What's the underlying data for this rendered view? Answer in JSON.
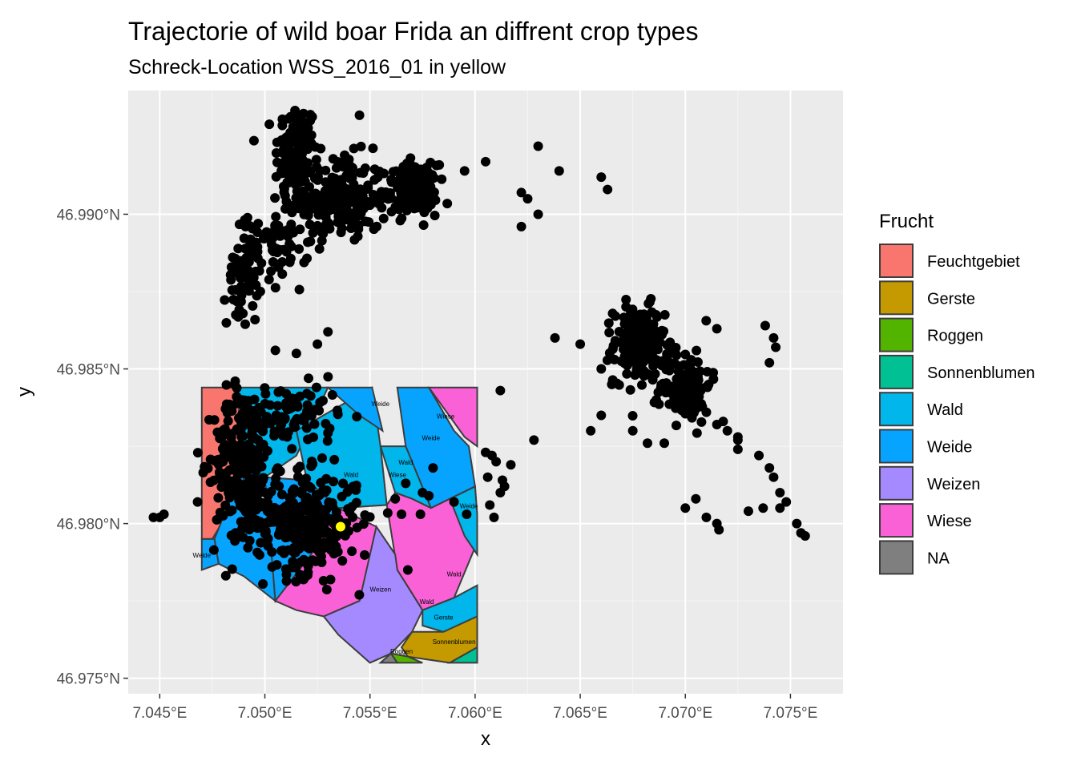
{
  "chart_data": {
    "type": "scatter",
    "title": "Trajectorie of wild boar Frida an diffrent crop types",
    "subtitle": "Schreck-Location WSS_2016_01 in yellow",
    "xlabel": "x",
    "ylabel": "y",
    "xlim": [
      7.0435,
      7.0775
    ],
    "ylim": [
      46.9745,
      46.994
    ],
    "x_ticks": [
      {
        "value": 7.045,
        "label": "7.045°E"
      },
      {
        "value": 7.05,
        "label": "7.050°E"
      },
      {
        "value": 7.055,
        "label": "7.055°E"
      },
      {
        "value": 7.06,
        "label": "7.060°E"
      },
      {
        "value": 7.065,
        "label": "7.065°E"
      },
      {
        "value": 7.07,
        "label": "7.070°E"
      },
      {
        "value": 7.075,
        "label": "7.075°E"
      }
    ],
    "y_ticks": [
      {
        "value": 46.975,
        "label": "46.975°N"
      },
      {
        "value": 46.98,
        "label": "46.980°N"
      },
      {
        "value": 46.985,
        "label": "46.985°N"
      },
      {
        "value": 46.99,
        "label": "46.990°N"
      }
    ],
    "grid": true,
    "legend": {
      "title": "Frucht",
      "placement": "right",
      "entries": [
        {
          "label": "Feuchtgebiet",
          "color": "#F8766D"
        },
        {
          "label": "Gerste",
          "color": "#C49A00"
        },
        {
          "label": "Roggen",
          "color": "#53B400"
        },
        {
          "label": "Sonnenblumen",
          "color": "#00C094"
        },
        {
          "label": "Wald",
          "color": "#00B6EB"
        },
        {
          "label": "Weide",
          "color": "#06A4FF"
        },
        {
          "label": "Weizen",
          "color": "#A58AFF"
        },
        {
          "label": "Wiese",
          "color": "#FB61D7"
        },
        {
          "label": "NA",
          "color": "#7F7F7F"
        }
      ]
    },
    "fields": [
      {
        "crop": "Feuchtgebiet",
        "coords": [
          [
            7.047,
            46.9844
          ],
          [
            7.0487,
            46.9844
          ],
          [
            7.049,
            46.9812
          ],
          [
            7.0475,
            46.9795
          ],
          [
            7.047,
            46.9795
          ]
        ]
      },
      {
        "crop": "Weide",
        "coords": [
          [
            7.0476,
            46.9795
          ],
          [
            7.0492,
            46.9822
          ],
          [
            7.0502,
            46.98
          ],
          [
            7.0505,
            46.9775
          ],
          [
            7.049,
            46.9783
          ],
          [
            7.0478,
            46.9787
          ]
        ]
      },
      {
        "crop": "Weide",
        "coords": [
          [
            7.047,
            46.9795
          ],
          [
            7.0476,
            46.9795
          ],
          [
            7.0478,
            46.9787
          ],
          [
            7.047,
            46.9785
          ]
        ]
      },
      {
        "crop": "Wald",
        "coords": [
          [
            7.0487,
            46.9844
          ],
          [
            7.053,
            46.9844
          ],
          [
            7.0515,
            46.9822
          ],
          [
            7.05,
            46.9815
          ],
          [
            7.049,
            46.9812
          ]
        ]
      },
      {
        "crop": "Wald",
        "coords": [
          [
            7.0515,
            46.983
          ],
          [
            7.0551,
            46.9844
          ],
          [
            7.0555,
            46.9825
          ],
          [
            7.0558,
            46.9806
          ],
          [
            7.0535,
            46.9805
          ],
          [
            7.052,
            46.9814
          ]
        ]
      },
      {
        "crop": "Weide",
        "coords": [
          [
            7.05,
            46.9815
          ],
          [
            7.052,
            46.9814
          ],
          [
            7.0535,
            46.9805
          ],
          [
            7.0522,
            46.979
          ],
          [
            7.0505,
            46.9775
          ],
          [
            7.0502,
            46.98
          ]
        ]
      },
      {
        "crop": "Wiese",
        "coords": [
          [
            7.0505,
            46.9775
          ],
          [
            7.0522,
            46.979
          ],
          [
            7.0535,
            46.9805
          ],
          [
            7.0553,
            46.9799
          ],
          [
            7.0562,
            46.979
          ],
          [
            7.0545,
            46.9775
          ],
          [
            7.0528,
            46.977
          ],
          [
            7.0515,
            46.9772
          ]
        ]
      },
      {
        "crop": "Weide",
        "coords": [
          [
            7.053,
            46.9844
          ],
          [
            7.0551,
            46.9844
          ],
          [
            7.0556,
            46.983
          ],
          [
            7.0545,
            46.9835
          ]
        ]
      },
      {
        "crop": "Weide",
        "coords": [
          [
            7.0563,
            46.9844
          ],
          [
            7.0578,
            46.9844
          ],
          [
            7.059,
            46.983
          ],
          [
            7.0597,
            46.9825
          ],
          [
            7.06,
            46.9812
          ],
          [
            7.0588,
            46.9808
          ],
          [
            7.0579,
            46.9805
          ],
          [
            7.0567,
            46.9825
          ]
        ]
      },
      {
        "crop": "Wiese",
        "coords": [
          [
            7.0578,
            46.9844
          ],
          [
            7.0601,
            46.9844
          ],
          [
            7.0601,
            46.9825
          ],
          [
            7.0595,
            46.9828
          ]
        ]
      },
      {
        "crop": "Wald",
        "coords": [
          [
            7.0555,
            46.9825
          ],
          [
            7.0567,
            46.9825
          ],
          [
            7.0579,
            46.9805
          ],
          [
            7.057,
            46.9808
          ],
          [
            7.0562,
            46.981
          ]
        ]
      },
      {
        "crop": "Wiese",
        "coords": [
          [
            7.0558,
            46.9806
          ],
          [
            7.0562,
            46.981
          ],
          [
            7.057,
            46.9808
          ],
          [
            7.0579,
            46.9805
          ],
          [
            7.0588,
            46.9808
          ],
          [
            7.0601,
            46.9794
          ],
          [
            7.059,
            46.9776
          ],
          [
            7.0575,
            46.9772
          ],
          [
            7.0563,
            46.9785
          ]
        ]
      },
      {
        "crop": "Wald",
        "coords": [
          [
            7.0588,
            46.9808
          ],
          [
            7.06,
            46.9812
          ],
          [
            7.0601,
            46.9803
          ],
          [
            7.0601,
            46.979
          ],
          [
            7.0595,
            46.9796
          ]
        ]
      },
      {
        "crop": "Weizen",
        "coords": [
          [
            7.0553,
            46.9799
          ],
          [
            7.0562,
            46.979
          ],
          [
            7.0563,
            46.9785
          ],
          [
            7.0575,
            46.9772
          ],
          [
            7.057,
            46.9765
          ],
          [
            7.056,
            46.9758
          ],
          [
            7.055,
            46.9755
          ],
          [
            7.0535,
            46.9764
          ],
          [
            7.0528,
            46.977
          ],
          [
            7.0545,
            46.9775
          ]
        ]
      },
      {
        "crop": "Wald",
        "coords": [
          [
            7.0575,
            46.9772
          ],
          [
            7.059,
            46.9776
          ],
          [
            7.0601,
            46.978
          ],
          [
            7.0601,
            46.977
          ],
          [
            7.0585,
            46.9765
          ],
          [
            7.0575,
            46.9767
          ]
        ]
      },
      {
        "crop": "Gerste",
        "coords": [
          [
            7.057,
            46.9765
          ],
          [
            7.0585,
            46.9765
          ],
          [
            7.0601,
            46.977
          ],
          [
            7.0601,
            46.976
          ],
          [
            7.0588,
            46.9755
          ],
          [
            7.0568,
            46.9757
          ],
          [
            7.0565,
            46.976
          ]
        ]
      },
      {
        "crop": "Sonnenblumen",
        "coords": [
          [
            7.0588,
            46.9755
          ],
          [
            7.0601,
            46.976
          ],
          [
            7.0601,
            46.9755
          ],
          [
            7.059,
            46.9755
          ]
        ]
      },
      {
        "crop": "Roggen",
        "coords": [
          [
            7.056,
            46.9758
          ],
          [
            7.0568,
            46.9757
          ],
          [
            7.0575,
            46.9755
          ],
          [
            7.0563,
            46.9755
          ]
        ]
      },
      {
        "crop": "NA",
        "coords": [
          [
            7.0555,
            46.9755
          ],
          [
            7.056,
            46.9758
          ],
          [
            7.0563,
            46.9755
          ]
        ]
      }
    ],
    "field_labels": [
      {
        "text": "Weide",
        "x": 7.0555,
        "y": 46.9838
      },
      {
        "text": "Wiese",
        "x": 7.0586,
        "y": 46.9834
      },
      {
        "text": "Weide",
        "x": 7.0579,
        "y": 46.9827
      },
      {
        "text": "Wald",
        "x": 7.0567,
        "y": 46.9819
      },
      {
        "text": "Wiese",
        "x": 7.0563,
        "y": 46.9815
      },
      {
        "text": "Wald",
        "x": 7.0541,
        "y": 46.9815
      },
      {
        "text": "Weide",
        "x": 7.047,
        "y": 46.9789
      },
      {
        "text": "Weide",
        "x": 7.0597,
        "y": 46.9805
      },
      {
        "text": "Wald",
        "x": 7.059,
        "y": 46.9783
      },
      {
        "text": "Weizen",
        "x": 7.0555,
        "y": 46.9778
      },
      {
        "text": "Wald",
        "x": 7.0577,
        "y": 46.9774
      },
      {
        "text": "Gerste",
        "x": 7.0585,
        "y": 46.9769
      },
      {
        "text": "Sonnenblumen",
        "x": 7.059,
        "y": 46.9761
      },
      {
        "text": "Roggen",
        "x": 7.0565,
        "y": 46.9758
      }
    ],
    "series": [
      {
        "color": "#000000",
        "clusters": [
          {
            "cx": 7.0515,
            "cy": 46.992,
            "sx": 0.0005,
            "sy": 0.0008,
            "n": 120
          },
          {
            "cx": 7.0535,
            "cy": 46.9905,
            "sx": 0.0012,
            "sy": 0.0007,
            "n": 220
          },
          {
            "cx": 7.057,
            "cy": 46.9908,
            "sx": 0.0006,
            "sy": 0.0004,
            "n": 150
          },
          {
            "cx": 7.0505,
            "cy": 46.989,
            "sx": 0.0008,
            "sy": 0.0005,
            "n": 60
          },
          {
            "cx": 7.049,
            "cy": 46.988,
            "sx": 0.0004,
            "sy": 0.0008,
            "n": 60
          },
          {
            "cx": 7.0678,
            "cy": 46.9858,
            "sx": 0.0006,
            "sy": 0.0006,
            "n": 200
          },
          {
            "cx": 7.07,
            "cy": 46.9845,
            "sx": 0.0006,
            "sy": 0.0006,
            "n": 120
          },
          {
            "cx": 7.049,
            "cy": 46.982,
            "sx": 0.0007,
            "sy": 0.0012,
            "n": 280
          },
          {
            "cx": 7.052,
            "cy": 46.98,
            "sx": 0.0012,
            "sy": 0.0008,
            "n": 300
          },
          {
            "cx": 7.0515,
            "cy": 46.9835,
            "sx": 0.001,
            "sy": 0.0005,
            "n": 80
          }
        ],
        "points": [
          [
            7.0447,
            46.9802
          ],
          [
            7.045,
            46.9802
          ],
          [
            7.0452,
            46.9803
          ],
          [
            7.0468,
            46.9807
          ],
          [
            7.053,
            46.9862
          ],
          [
            7.0525,
            46.9858
          ],
          [
            7.0515,
            46.9855
          ],
          [
            7.0505,
            46.9856
          ],
          [
            7.0545,
            46.9932
          ],
          [
            7.0595,
            46.9914
          ],
          [
            7.0605,
            46.9917
          ],
          [
            7.063,
            46.9922
          ],
          [
            7.0625,
            46.9905
          ],
          [
            7.064,
            46.9914
          ],
          [
            7.0622,
            46.9907
          ],
          [
            7.066,
            46.9912
          ],
          [
            7.0663,
            46.9908
          ],
          [
            7.0622,
            46.9896
          ],
          [
            7.063,
            46.99
          ],
          [
            7.0638,
            46.986
          ],
          [
            7.065,
            46.9858
          ],
          [
            7.066,
            46.985
          ],
          [
            7.0665,
            46.9845
          ],
          [
            7.066,
            46.9835
          ],
          [
            7.0655,
            46.983
          ],
          [
            7.0675,
            46.983
          ],
          [
            7.069,
            46.9826
          ],
          [
            7.0682,
            46.9826
          ],
          [
            7.0715,
            46.9863
          ],
          [
            7.0738,
            46.9864
          ],
          [
            7.0742,
            46.986
          ],
          [
            7.0743,
            46.9857
          ],
          [
            7.074,
            46.9852
          ],
          [
            7.071,
            46.9836
          ],
          [
            7.0715,
            46.9832
          ],
          [
            7.0725,
            46.9827
          ],
          [
            7.0725,
            46.9824
          ],
          [
            7.0735,
            46.9822
          ],
          [
            7.074,
            46.9818
          ],
          [
            7.0742,
            46.9815
          ],
          [
            7.0745,
            46.981
          ],
          [
            7.0748,
            46.9807
          ],
          [
            7.0737,
            46.9805
          ],
          [
            7.073,
            46.9804
          ],
          [
            7.0745,
            46.9805
          ],
          [
            7.0753,
            46.98
          ],
          [
            7.0755,
            46.9797
          ],
          [
            7.0757,
            46.9796
          ],
          [
            7.0725,
            46.9828
          ],
          [
            7.072,
            46.983
          ],
          [
            7.0718,
            46.9833
          ],
          [
            7.0705,
            46.9808
          ],
          [
            7.071,
            46.9802
          ],
          [
            7.0715,
            46.98
          ],
          [
            7.0716,
            46.9798
          ],
          [
            7.07,
            46.9805
          ],
          [
            7.0612,
            46.9843
          ],
          [
            7.0617,
            46.9819
          ],
          [
            7.0614,
            46.9812
          ],
          [
            7.0607,
            46.9806
          ],
          [
            7.0606,
            46.9815
          ],
          [
            7.0608,
            46.9822
          ],
          [
            7.0628,
            46.9827
          ],
          [
            7.0568,
            46.9785
          ],
          [
            7.0542,
            46.9812
          ],
          [
            7.0565,
            46.9803
          ],
          [
            7.0605,
            46.9823
          ],
          [
            7.061,
            46.982
          ],
          [
            7.0613,
            46.9814
          ],
          [
            7.0612,
            46.981
          ],
          [
            7.0609,
            46.9802
          ],
          [
            7.0596,
            46.9803
          ],
          [
            7.059,
            46.9807
          ],
          [
            7.058,
            46.9818
          ],
          [
            7.0567,
            46.9813
          ],
          [
            7.0562,
            46.9808
          ],
          [
            7.0575,
            46.981
          ],
          [
            7.0578,
            46.9809
          ],
          [
            7.0574,
            46.9803
          ],
          [
            7.052,
            46.9842
          ]
        ]
      },
      {
        "name": "Schreck-Location WSS_2016_01",
        "color": "#FFFF00",
        "points": [
          [
            7.0536,
            46.9799
          ]
        ]
      }
    ]
  }
}
